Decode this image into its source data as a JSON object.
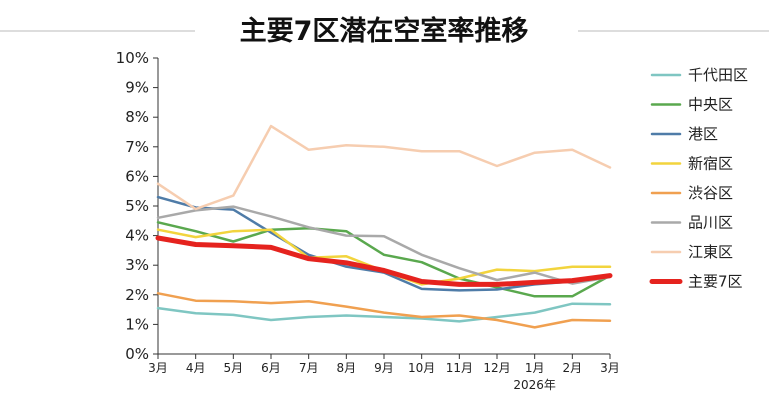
{
  "chart_data": {
    "type": "line",
    "title": "主要7区潜在空室率推移",
    "xlabel": "",
    "ylabel": "",
    "categories": [
      "3月",
      "4月",
      "5月",
      "6月",
      "7月",
      "8月",
      "9月",
      "10月",
      "11月",
      "12月",
      "1月",
      "2月",
      "3月"
    ],
    "year_label": "2026年",
    "ylim": [
      0,
      10
    ],
    "yticks": [
      "0%",
      "1%",
      "2%",
      "3%",
      "4%",
      "5%",
      "6%",
      "7%",
      "8%",
      "9%",
      "10%"
    ],
    "grid": false,
    "legend_position": "right",
    "series": [
      {
        "name": "千代田区",
        "color": "#7fc6c2",
        "width": 2.5,
        "values": [
          1.55,
          1.38,
          1.32,
          1.15,
          1.25,
          1.3,
          1.25,
          1.2,
          1.1,
          1.25,
          1.4,
          1.7,
          1.68
        ]
      },
      {
        "name": "中央区",
        "color": "#5aa84e",
        "width": 2.5,
        "values": [
          4.45,
          4.15,
          3.8,
          4.2,
          4.25,
          4.15,
          3.35,
          3.1,
          2.55,
          2.25,
          1.95,
          1.95,
          2.65
        ]
      },
      {
        "name": "港区",
        "color": "#4f7ca8",
        "width": 2.5,
        "values": [
          5.3,
          4.95,
          4.88,
          4.1,
          3.35,
          2.95,
          2.75,
          2.2,
          2.15,
          2.18,
          2.35,
          2.45,
          2.65
        ]
      },
      {
        "name": "新宿区",
        "color": "#f2d43d",
        "width": 2.5,
        "values": [
          4.2,
          3.95,
          4.15,
          4.2,
          3.25,
          3.3,
          2.8,
          2.35,
          2.55,
          2.85,
          2.8,
          2.95,
          2.95
        ]
      },
      {
        "name": "渋谷区",
        "color": "#f0a050",
        "width": 2.5,
        "values": [
          2.05,
          1.8,
          1.78,
          1.72,
          1.78,
          1.6,
          1.4,
          1.25,
          1.3,
          1.15,
          0.9,
          1.15,
          1.12
        ]
      },
      {
        "name": "品川区",
        "color": "#a9a9a9",
        "width": 2.5,
        "values": [
          4.6,
          4.85,
          4.98,
          4.65,
          4.28,
          4.0,
          3.98,
          3.35,
          2.9,
          2.5,
          2.75,
          2.38,
          2.6
        ]
      },
      {
        "name": "江東区",
        "color": "#f6cdb0",
        "width": 2.5,
        "values": [
          5.75,
          4.9,
          5.35,
          7.7,
          6.9,
          7.05,
          7.0,
          6.85,
          6.85,
          6.35,
          6.8,
          6.9,
          6.3
        ]
      },
      {
        "name": "主要7区",
        "color": "#e5231e",
        "width": 5,
        "values": [
          3.92,
          3.7,
          3.66,
          3.6,
          3.22,
          3.08,
          2.82,
          2.45,
          2.35,
          2.35,
          2.42,
          2.48,
          2.65
        ]
      }
    ]
  }
}
